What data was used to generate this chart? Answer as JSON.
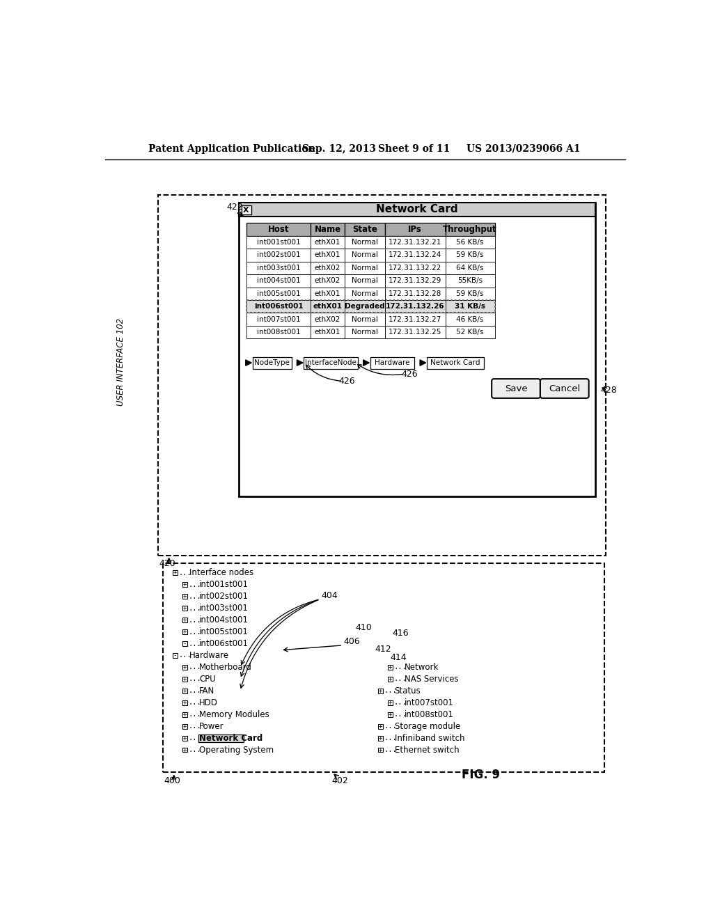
{
  "header_text": "Patent Application Publication",
  "header_date": "Sep. 12, 2013",
  "header_sheet": "Sheet 9 of 11",
  "header_patent": "US 2013/0239066 A1",
  "fig_label": "FIG. 9",
  "user_interface_label": "USER INTERFACE 102",
  "label_420": "420",
  "label_422": "422",
  "label_400": "400",
  "label_402": "402",
  "label_404": "404",
  "label_406": "406",
  "label_410": "410",
  "label_412": "412",
  "label_414": "414",
  "label_416": "416",
  "label_426a": "426",
  "label_426b": "426",
  "label_428": "428",
  "network_card_title": "Network Card",
  "table_headers": [
    "Host",
    "Name",
    "State",
    "IPs",
    "Throughput"
  ],
  "table_rows": [
    [
      "int001st001",
      "ethX01",
      "Normal",
      "172.31.132.21",
      "56 KB/s"
    ],
    [
      "int002st001",
      "ethX01",
      "Normal",
      "172.31.132.24",
      "59 KB/s"
    ],
    [
      "int003st001",
      "ethX02",
      "Normal",
      "172.31.132.22",
      "64 KB/s"
    ],
    [
      "int004st001",
      "ethX02",
      "Normal",
      "172.31.132.29",
      "55KB/s"
    ],
    [
      "int005st001",
      "ethX01",
      "Normal",
      "172.31.132.28",
      "59 KB/s"
    ],
    [
      "int006st001",
      "ethX01",
      "Degraded",
      "172.31.132.26",
      "31 KB/s"
    ],
    [
      "int007st001",
      "ethX02",
      "Normal",
      "172.31.132.27",
      "46 KB/s"
    ],
    [
      "int008st001",
      "ethX01",
      "Normal",
      "172.31.132.25",
      "52 KB/s"
    ]
  ],
  "highlighted_row": 5,
  "tree_left": [
    [
      0,
      "Interface nodes"
    ],
    [
      1,
      "int001st001"
    ],
    [
      1,
      "int002st001"
    ],
    [
      1,
      "int003st001"
    ],
    [
      1,
      "int004st001"
    ],
    [
      1,
      "int005st001"
    ],
    [
      1,
      "int006st001"
    ],
    [
      0,
      "Hardware"
    ],
    [
      1,
      "Motherboard"
    ],
    [
      1,
      "CPU"
    ],
    [
      1,
      "FAN"
    ],
    [
      1,
      "HDD"
    ],
    [
      1,
      "Memory Modules"
    ],
    [
      1,
      "Power"
    ],
    [
      1,
      "Network Card"
    ],
    [
      1,
      "Operating System"
    ]
  ],
  "tree_right": [
    [
      1,
      "Network"
    ],
    [
      1,
      "NAS Services"
    ],
    [
      0,
      "Status"
    ],
    [
      1,
      "int007st001"
    ],
    [
      1,
      "int008st001"
    ],
    [
      0,
      "Storage module"
    ],
    [
      0,
      "Infiniband switch"
    ],
    [
      0,
      "Ethernet switch"
    ]
  ],
  "bottom_bar_items": [
    "NodeType",
    "InterfaceNode",
    "Hardware",
    "Network Card"
  ],
  "button_save": "Save",
  "button_cancel": "Cancel"
}
